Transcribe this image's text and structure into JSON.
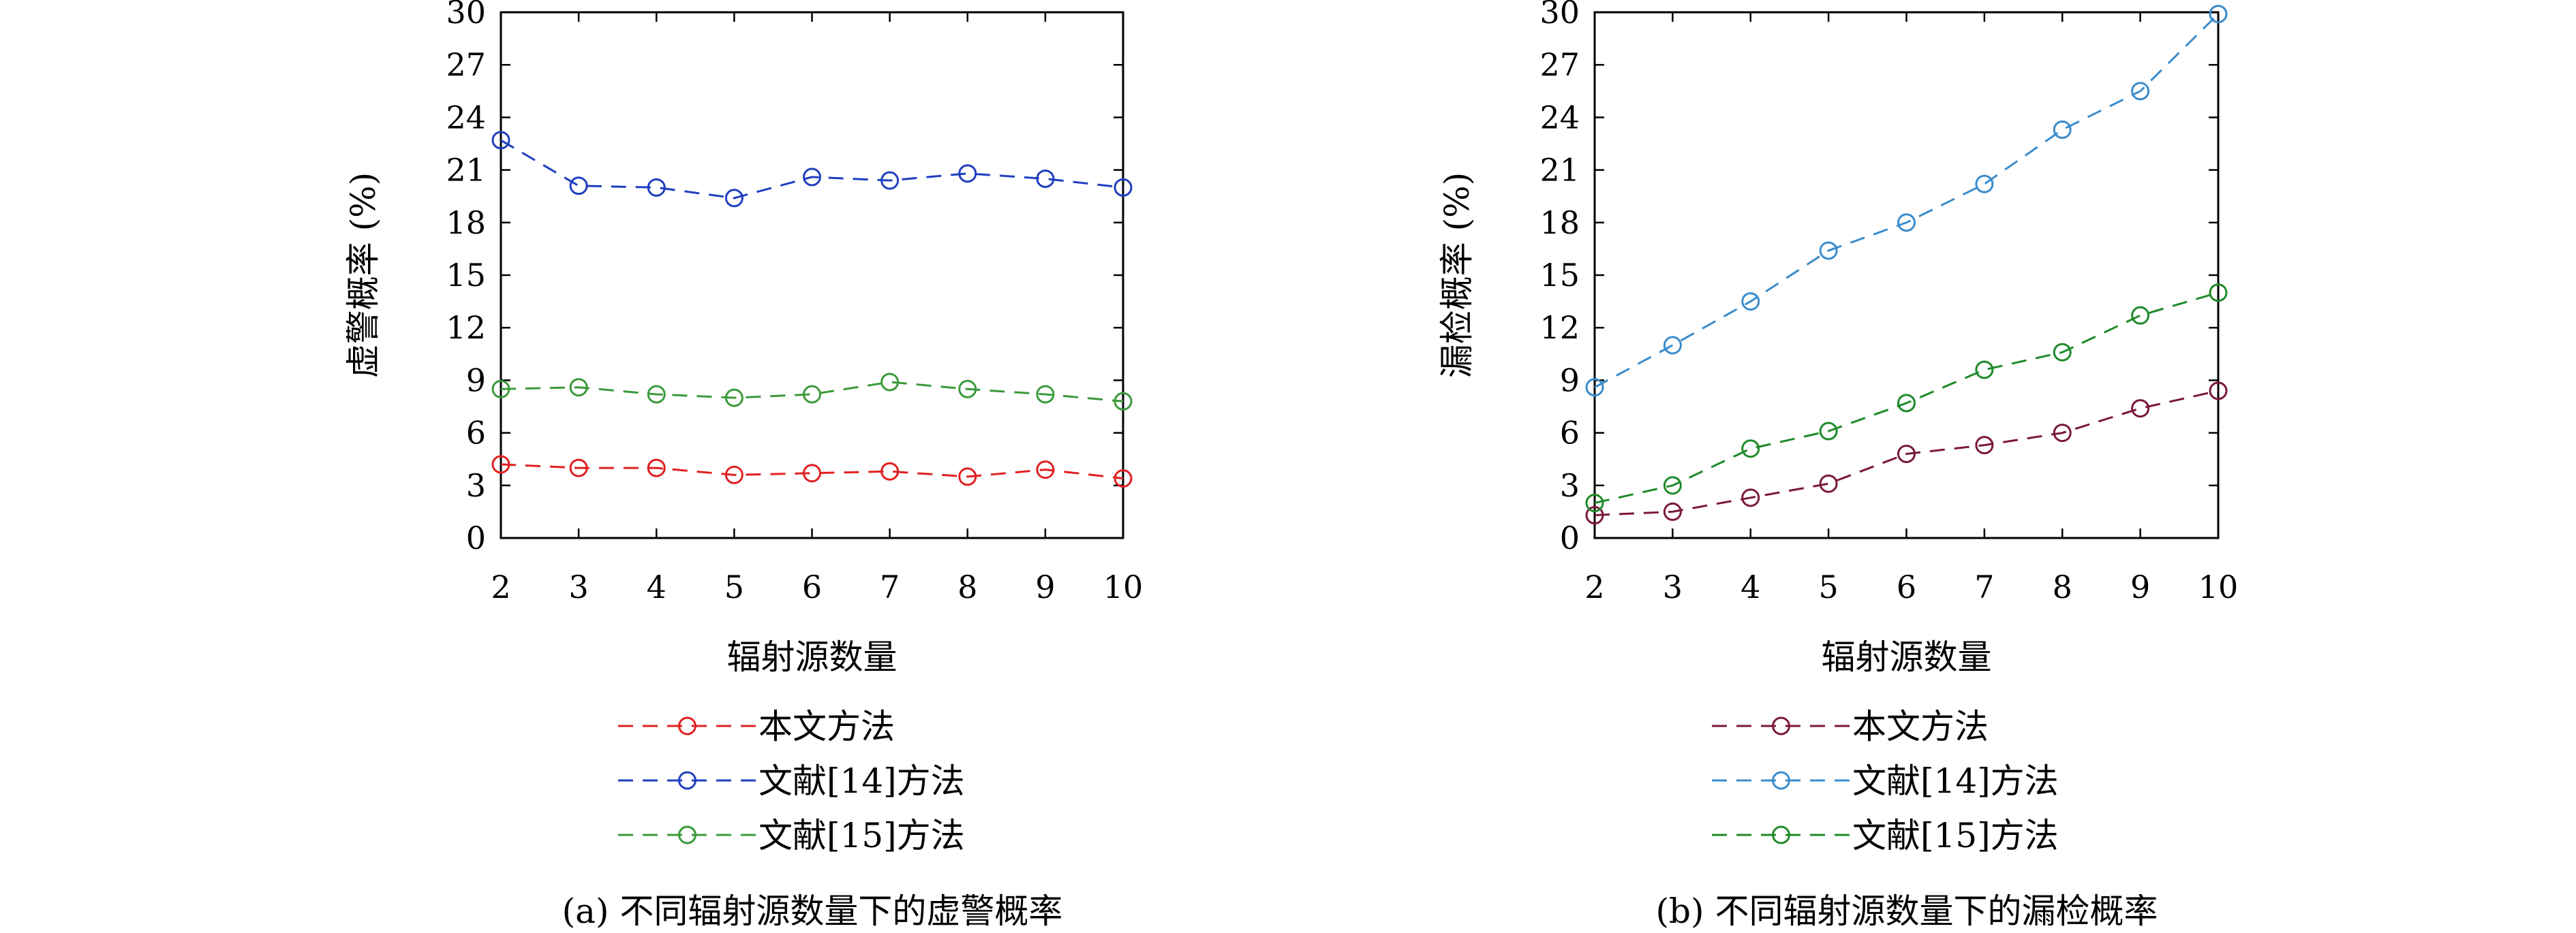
{
  "chart_data": [
    {
      "type": "line",
      "caption": "(a) 不同辐射源数量下的虚警概率",
      "xlabel": "辐射源数量",
      "ylabel": "虚警概率 (%)",
      "x": [
        2,
        3,
        4,
        5,
        6,
        7,
        8,
        9,
        10
      ],
      "xlim": [
        2,
        10
      ],
      "ylim": [
        0,
        30
      ],
      "yticks": [
        0,
        3,
        6,
        9,
        12,
        15,
        18,
        21,
        24,
        27,
        30
      ],
      "grid": false,
      "legend_position": "below",
      "series": [
        {
          "name": "本文方法",
          "color": "#e02020",
          "values": [
            4.2,
            4.0,
            4.0,
            3.6,
            3.7,
            3.8,
            3.5,
            3.9,
            3.4
          ]
        },
        {
          "name": "文献[14]方法",
          "color": "#1f3fbf",
          "values": [
            22.7,
            20.1,
            20.0,
            19.4,
            20.6,
            20.4,
            20.8,
            20.5,
            20.0
          ]
        },
        {
          "name": "文献[15]方法",
          "color": "#3a9a3a",
          "values": [
            8.5,
            8.6,
            8.2,
            8.0,
            8.2,
            8.9,
            8.5,
            8.2,
            7.8
          ]
        }
      ]
    },
    {
      "type": "line",
      "caption": "(b) 不同辐射源数量下的漏检概率",
      "xlabel": "辐射源数量",
      "ylabel": "漏检概率 (%)",
      "x": [
        2,
        3,
        4,
        5,
        6,
        7,
        8,
        9,
        10
      ],
      "xlim": [
        2,
        10
      ],
      "ylim": [
        0,
        30
      ],
      "yticks": [
        0,
        3,
        6,
        9,
        12,
        15,
        18,
        21,
        24,
        27,
        30
      ],
      "grid": false,
      "legend_position": "below",
      "series": [
        {
          "name": "本文方法",
          "color": "#7a1838",
          "values": [
            1.3,
            1.5,
            2.3,
            3.1,
            4.8,
            5.3,
            6.0,
            7.4,
            8.4
          ]
        },
        {
          "name": "文献[14]方法",
          "color": "#3a8ccc",
          "values": [
            8.6,
            11.0,
            13.5,
            16.4,
            18.0,
            20.2,
            23.3,
            25.5,
            29.9
          ]
        },
        {
          "name": "文献[15]方法",
          "color": "#1f8a2a",
          "values": [
            2.0,
            3.0,
            5.1,
            6.1,
            7.7,
            9.6,
            10.6,
            12.7,
            14.0
          ]
        }
      ]
    }
  ]
}
